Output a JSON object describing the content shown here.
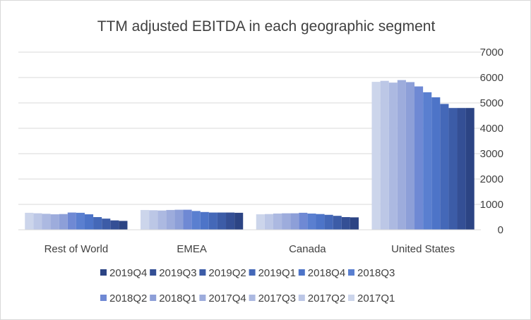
{
  "chart_data": {
    "type": "bar",
    "title": "TTM adjusted EBITDA in each geographic segment",
    "xlabel": "",
    "ylabel": "",
    "ylim": [
      0,
      7000
    ],
    "yticks": [
      0,
      1000,
      2000,
      3000,
      4000,
      5000,
      6000,
      7000
    ],
    "y_axis_position": "right",
    "grid": true,
    "legend_position": "bottom",
    "categories": [
      "Rest of World",
      "EMEA",
      "Canada",
      "United States"
    ],
    "series": [
      {
        "name": "2017Q1",
        "color": "#ccd5eb",
        "values": [
          670,
          780,
          610,
          5830
        ]
      },
      {
        "name": "2017Q2",
        "color": "#bcc7e6",
        "values": [
          650,
          770,
          620,
          5870
        ]
      },
      {
        "name": "2017Q3",
        "color": "#acb9e1",
        "values": [
          630,
          760,
          640,
          5800
        ]
      },
      {
        "name": "2017Q4",
        "color": "#9dacdc",
        "values": [
          610,
          780,
          650,
          5900
        ]
      },
      {
        "name": "2018Q1",
        "color": "#8d9fd8",
        "values": [
          620,
          790,
          650,
          5820
        ]
      },
      {
        "name": "2018Q2",
        "color": "#6f89d4",
        "values": [
          680,
          790,
          670,
          5650
        ]
      },
      {
        "name": "2018Q3",
        "color": "#5a7fd0",
        "values": [
          670,
          740,
          640,
          5420
        ]
      },
      {
        "name": "2018Q4",
        "color": "#4d74c8",
        "values": [
          610,
          700,
          620,
          5220
        ]
      },
      {
        "name": "2019Q1",
        "color": "#4468b8",
        "values": [
          500,
          680,
          590,
          4960
        ]
      },
      {
        "name": "2019Q2",
        "color": "#3c5ca7",
        "values": [
          440,
          680,
          550,
          4800
        ]
      },
      {
        "name": "2019Q3",
        "color": "#344f95",
        "values": [
          370,
          680,
          500,
          4800
        ]
      },
      {
        "name": "2019Q4",
        "color": "#2c4484",
        "values": [
          350,
          670,
          490,
          4800
        ]
      }
    ],
    "legend_order": [
      "2019Q4",
      "2019Q3",
      "2019Q2",
      "2019Q1",
      "2018Q4",
      "2018Q3",
      "2018Q2",
      "2018Q1",
      "2017Q4",
      "2017Q3",
      "2017Q2",
      "2017Q1"
    ]
  }
}
